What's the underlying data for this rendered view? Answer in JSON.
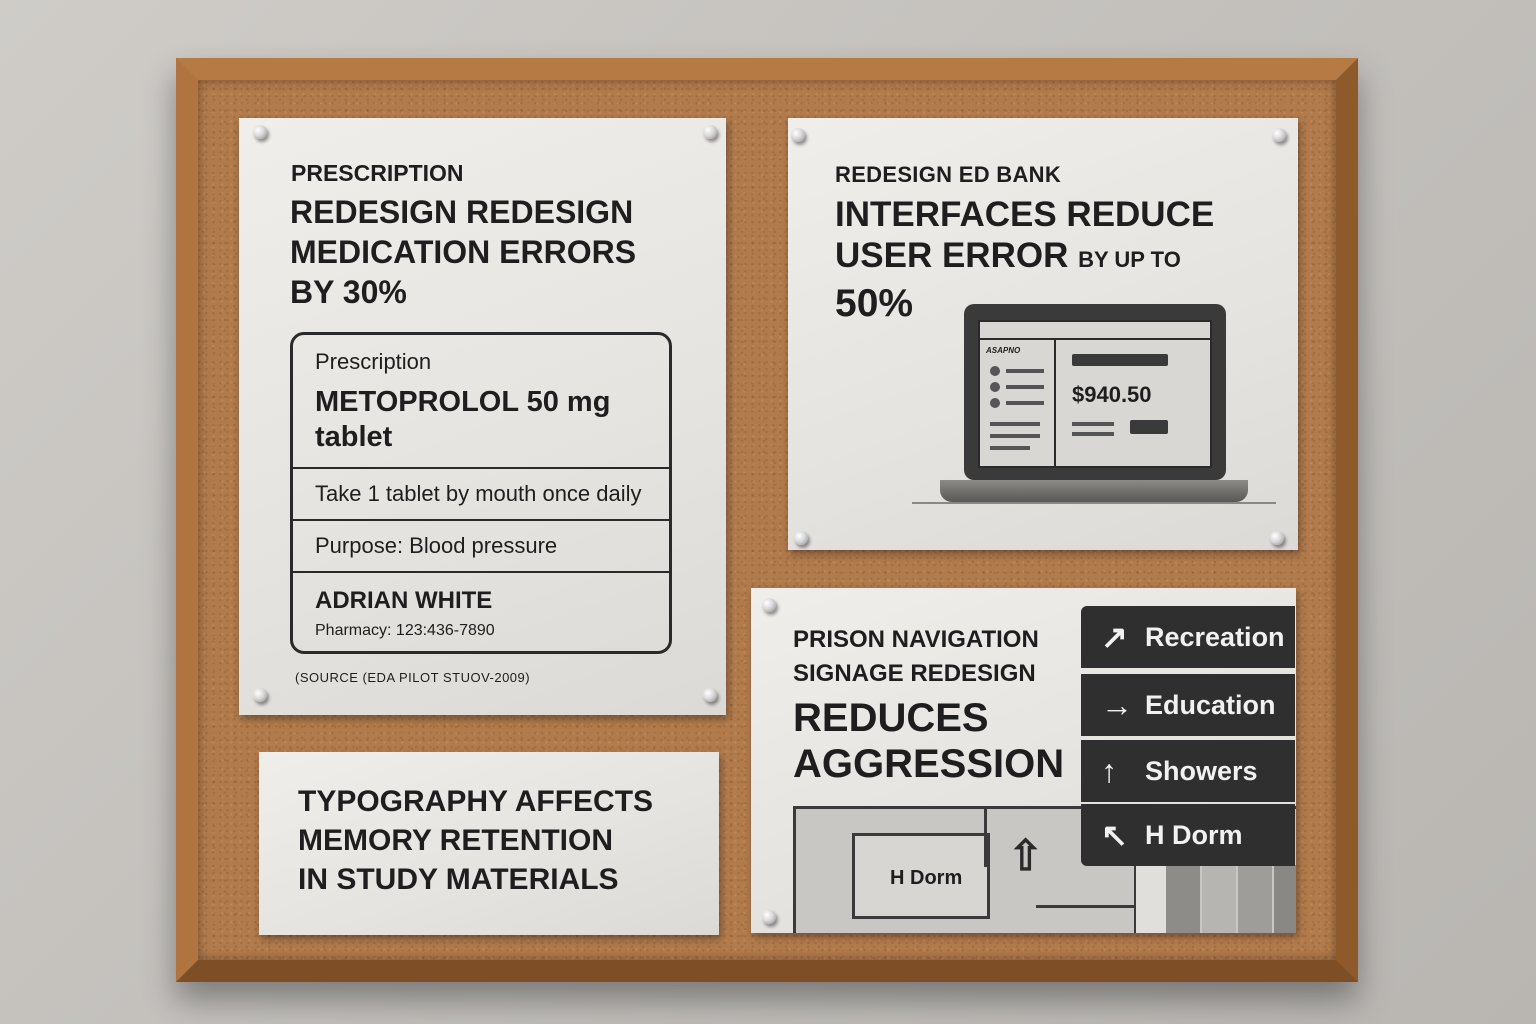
{
  "card_prescription": {
    "kicker": "PRESCRIPTION",
    "headline_1": "REDESIGN REDESIGN",
    "headline_2": "MEDICATION ERRORS",
    "headline_3": "BY 30%",
    "label": {
      "title": "Prescription",
      "drug_1": "METOPROLOL 50 mg",
      "drug_2": "tablet",
      "instructions": "Take 1 tablet by mouth once daily",
      "purpose": "Purpose: Blood pressure",
      "patient": "ADRIAN WHITE",
      "pharmacy": "Pharmacy: 123:436-7890"
    },
    "source": "(SOURCE (EDA PILOT STUOV-2009)"
  },
  "card_bank": {
    "kicker": "REDESIGN ED BANK",
    "headline_1": "INTERFACES REDUCE",
    "headline_2a": "USER ERROR",
    "headline_2b": "BY UP TO",
    "headline_3": "50%",
    "screen": {
      "logo": "ASAPNO",
      "amount": "$940.50"
    }
  },
  "card_typography": {
    "line_1": "TYPOGRAPHY AFFECTS",
    "line_2": "MEMORY RETENTION",
    "line_3": "IN STUDY MATERIALS"
  },
  "card_prison": {
    "kicker_1": "PRISON NAVIGATION",
    "kicker_2": "SIGNAGE REDESIGN",
    "headline_1": "REDUCES",
    "headline_2": "AGGRESSION",
    "signs": [
      {
        "icon": "arrow-up-right-icon",
        "glyph": "↗",
        "label": "Recreation"
      },
      {
        "icon": "arrow-right-icon",
        "glyph": "→",
        "label": "Education"
      },
      {
        "icon": "arrow-up-icon",
        "glyph": "↑",
        "label": "Showers"
      },
      {
        "icon": "arrow-up-left-icon",
        "glyph": "↖",
        "label": "H Dorm"
      }
    ],
    "map_label": "H Dorm"
  }
}
